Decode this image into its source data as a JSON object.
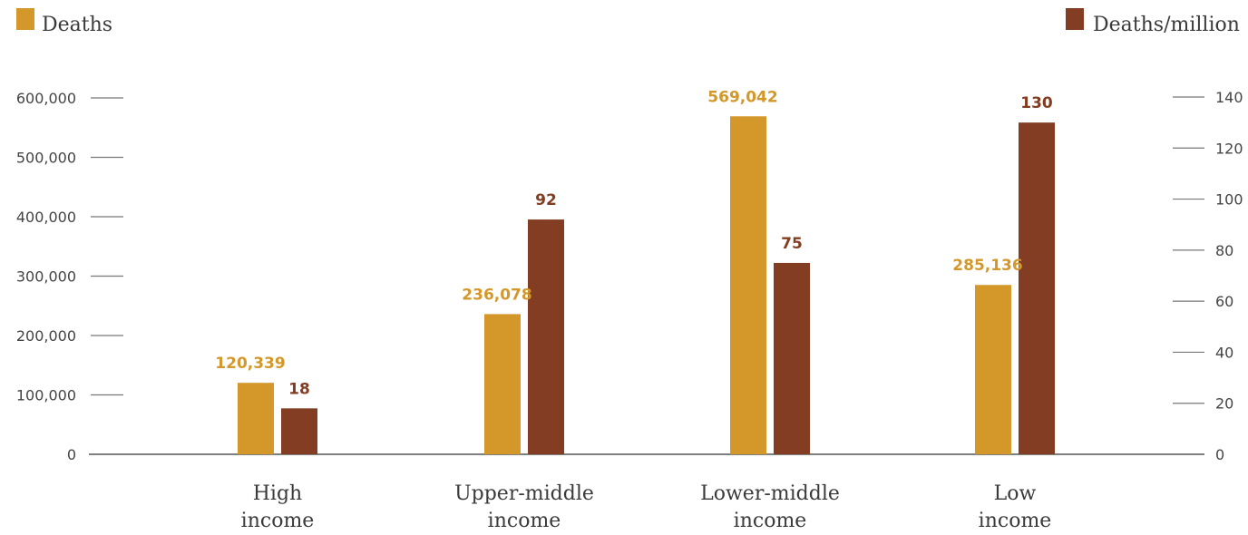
{
  "chart_data": {
    "type": "bar",
    "title": "",
    "categories": [
      [
        "High",
        "income"
      ],
      [
        "Upper-middle",
        "income"
      ],
      [
        "Lower-middle",
        "income"
      ],
      [
        "Low",
        "income"
      ]
    ],
    "series": [
      {
        "name": "Deaths",
        "axis": "left",
        "color": "#D4982A",
        "values": [
          120339,
          236078,
          569042,
          285136
        ],
        "labels": [
          "120,339",
          "236,078",
          "569,042",
          "285,136"
        ]
      },
      {
        "name": "Deaths/million",
        "axis": "right",
        "color": "#823D22",
        "values": [
          18,
          92,
          75,
          130
        ],
        "labels": [
          "18",
          "92",
          "75",
          "130"
        ]
      }
    ],
    "y_left": {
      "ticks": [
        "0",
        "100,000",
        "200,000",
        "300,000",
        "400,000",
        "500,000",
        "600,000"
      ],
      "tick_values": [
        0,
        100000,
        200000,
        300000,
        400000,
        500000,
        600000
      ],
      "range": [
        0,
        600000
      ]
    },
    "y_right": {
      "ticks": [
        "0",
        "20",
        "40",
        "60",
        "80",
        "100",
        "120",
        "140"
      ],
      "tick_values": [
        0,
        20,
        40,
        60,
        80,
        100,
        120,
        140
      ],
      "range": [
        0,
        140
      ]
    },
    "legend": {
      "deaths_label": "Deaths",
      "deaths_per_million_label": "Deaths/million",
      "placement": "top"
    },
    "grid": false
  }
}
